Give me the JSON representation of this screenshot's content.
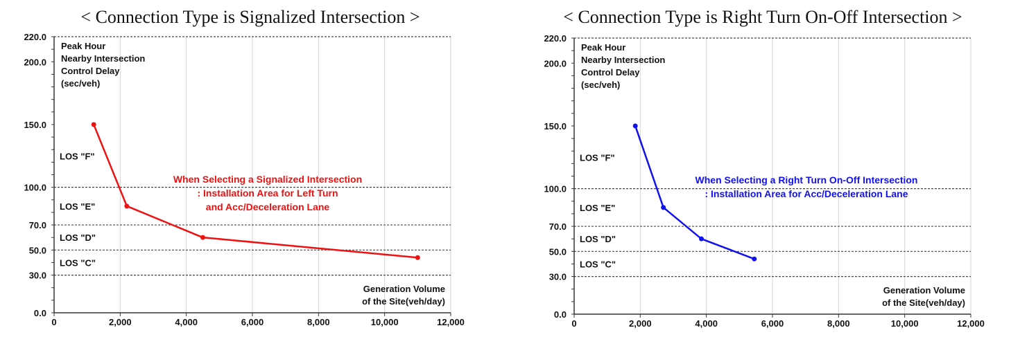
{
  "chart_data": [
    {
      "type": "line",
      "title": "< Connection Type is Signalized Intersection >",
      "ylabel_lines": [
        "Peak Hour",
        "Nearby Intersection",
        "Control Delay",
        "(sec/veh)"
      ],
      "xlabel_lines": [
        "Generation Volume",
        "of the Site(veh/day)"
      ],
      "xlim": [
        0,
        12000
      ],
      "ylim": [
        0,
        220
      ],
      "x_ticks": [
        0,
        2000,
        4000,
        6000,
        8000,
        10000,
        12000
      ],
      "x_tick_labels": [
        "0",
        "2,000",
        "4,000",
        "6,000",
        "8,000",
        "10,000",
        "12,000"
      ],
      "y_tick_labels": [
        {
          "value": 0,
          "label": "0.0"
        },
        {
          "value": 30,
          "label": "30.0"
        },
        {
          "value": 50,
          "label": "50.0"
        },
        {
          "value": 70,
          "label": "70.0"
        },
        {
          "value": 100,
          "label": "100.0"
        },
        {
          "value": 150,
          "label": "150.0"
        },
        {
          "value": 200,
          "label": "200.0"
        },
        {
          "value": 220,
          "label": "220.0"
        }
      ],
      "threshold_lines": [
        30,
        50,
        70,
        100,
        220
      ],
      "los_labels": [
        {
          "label": "LOS \"F\"",
          "y": 125
        },
        {
          "label": "LOS \"E\"",
          "y": 85
        },
        {
          "label": "LOS \"D\"",
          "y": 60
        },
        {
          "label": "LOS \"C\"",
          "y": 40
        }
      ],
      "series": [
        {
          "color": "#ee1111",
          "x": [
            1200,
            2200,
            4500,
            11000
          ],
          "y": [
            150,
            85,
            60,
            44
          ]
        }
      ],
      "annotation_lines": [
        "When Selecting a Signalized Intersection",
        ": Installation Area for Left Turn",
        "and Acc/Deceleration Lane"
      ],
      "annotation_color": "#ee1111"
    },
    {
      "type": "line",
      "title": "< Connection Type is Right Turn On-Off Intersection >",
      "ylabel_lines": [
        "Peak Hour",
        "Nearby Intersection",
        "Control Delay",
        "(sec/veh)"
      ],
      "xlabel_lines": [
        "Generation Volume",
        "of the Site(veh/day)"
      ],
      "xlim": [
        0,
        12000
      ],
      "ylim": [
        0,
        220
      ],
      "x_ticks": [
        0,
        2000,
        4000,
        6000,
        8000,
        10000,
        12000
      ],
      "x_tick_labels": [
        "0",
        "2,000",
        "4,000",
        "6,000",
        "8,000",
        "10,000",
        "12,000"
      ],
      "y_tick_labels": [
        {
          "value": 0,
          "label": "0.0"
        },
        {
          "value": 30,
          "label": "30.0"
        },
        {
          "value": 50,
          "label": "50.0"
        },
        {
          "value": 70,
          "label": "70.0"
        },
        {
          "value": 100,
          "label": "100.0"
        },
        {
          "value": 150,
          "label": "150.0"
        },
        {
          "value": 200,
          "label": "200.0"
        },
        {
          "value": 220,
          "label": "220.0"
        }
      ],
      "threshold_lines": [
        30,
        50,
        70,
        100,
        220
      ],
      "los_labels": [
        {
          "label": "LOS \"F\"",
          "y": 125
        },
        {
          "label": "LOS \"E\"",
          "y": 85
        },
        {
          "label": "LOS \"D\"",
          "y": 60
        },
        {
          "label": "LOS \"C\"",
          "y": 40
        }
      ],
      "series": [
        {
          "color": "#1111ee",
          "x": [
            1850,
            2700,
            3850,
            5450
          ],
          "y": [
            150,
            85,
            60,
            44
          ]
        }
      ],
      "annotation_lines": [
        "When Selecting a Right Turn On-Off Intersection",
        ": Installation Area for Acc/Deceleration Lane"
      ],
      "annotation_color": "#1111ee"
    }
  ]
}
